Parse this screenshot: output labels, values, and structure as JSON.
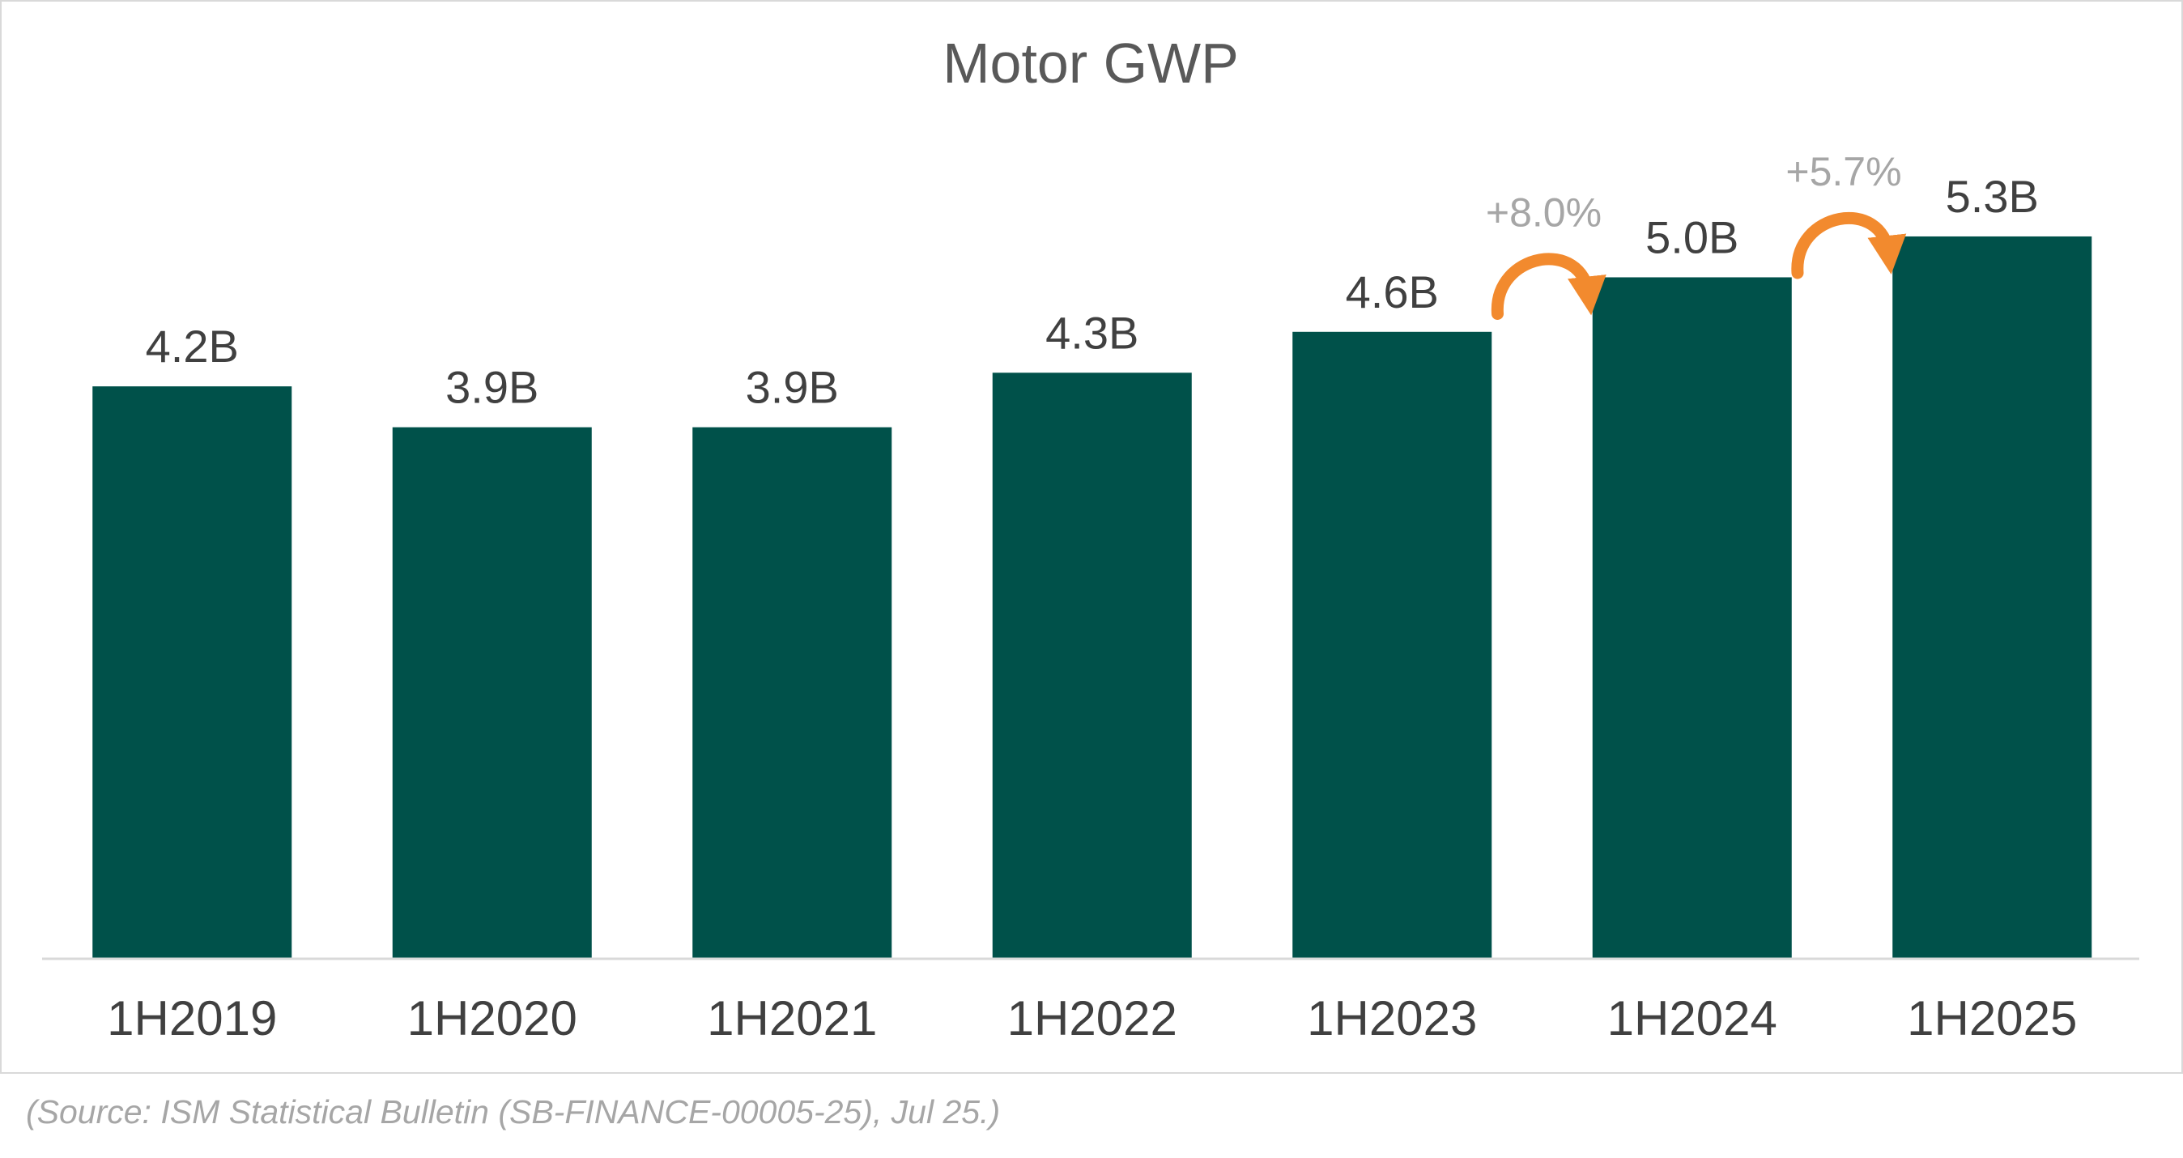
{
  "chart_data": {
    "type": "bar",
    "title": "Motor GWP",
    "categories": [
      "1H2019",
      "1H2020",
      "1H2021",
      "1H2022",
      "1H2023",
      "1H2024",
      "1H2025"
    ],
    "values": [
      4.2,
      3.9,
      3.9,
      4.3,
      4.6,
      5.0,
      5.3
    ],
    "data_labels": [
      "4.2B",
      "3.9B",
      "3.9B",
      "4.3B",
      "4.6B",
      "5.0B",
      "5.3B"
    ],
    "unit": "B",
    "ylim": [
      0,
      6.5
    ],
    "grid": false,
    "legend": "none",
    "annotations": [
      {
        "from": "1H2023",
        "to": "1H2024",
        "text": "+8.0%"
      },
      {
        "from": "1H2024",
        "to": "1H2025",
        "text": "+5.7%"
      }
    ],
    "colors": {
      "bar": "#00514a",
      "axis": "#d9d9d9",
      "label": "#404040",
      "title": "#595959",
      "annotation_text": "#a6a6a6",
      "arrow": "#f28a2e"
    }
  },
  "source": "(Source: ISM Statistical Bulletin (SB-FINANCE-00005-25), Jul 25.)"
}
